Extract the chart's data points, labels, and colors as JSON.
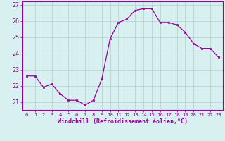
{
  "x": [
    0,
    1,
    2,
    3,
    4,
    5,
    6,
    7,
    8,
    9,
    10,
    11,
    12,
    13,
    14,
    15,
    16,
    17,
    18,
    19,
    20,
    21,
    22,
    23
  ],
  "y": [
    22.6,
    22.6,
    21.9,
    22.1,
    21.5,
    21.1,
    21.1,
    20.8,
    21.1,
    22.4,
    24.9,
    25.9,
    26.1,
    26.65,
    26.75,
    26.75,
    25.9,
    25.9,
    25.75,
    25.3,
    24.6,
    24.3,
    24.3,
    23.75
  ],
  "line_color": "#990099",
  "marker": "s",
  "marker_size": 2.0,
  "bg_color": "#d9f0f0",
  "grid_color": "#b0cece",
  "xlabel": "Windchill (Refroidissement éolien,°C)",
  "xlabel_color": "#990099",
  "tick_color": "#990099",
  "spine_color": "#990099",
  "ylim": [
    20.5,
    27.2
  ],
  "xlim": [
    -0.5,
    23.5
  ],
  "yticks": [
    21,
    22,
    23,
    24,
    25,
    26,
    27
  ],
  "xticks": [
    0,
    1,
    2,
    3,
    4,
    5,
    6,
    7,
    8,
    9,
    10,
    11,
    12,
    13,
    14,
    15,
    16,
    17,
    18,
    19,
    20,
    21,
    22,
    23
  ],
  "xlabel_fontsize": 6.0,
  "xtick_fontsize": 5.2,
  "ytick_fontsize": 6.0
}
